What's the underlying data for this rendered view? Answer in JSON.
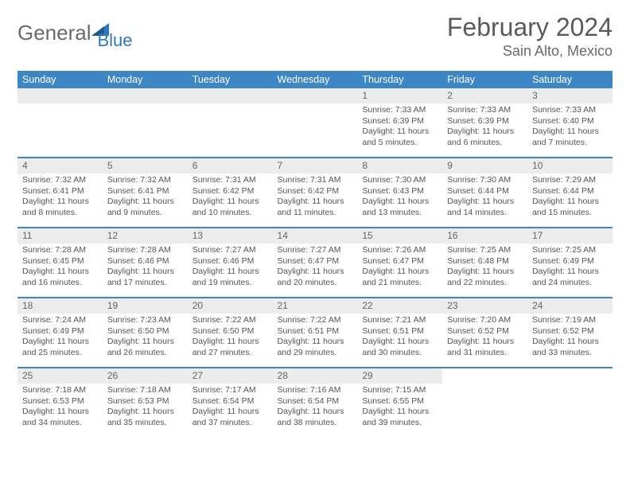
{
  "brand": {
    "general": "General",
    "blue": "Blue"
  },
  "title": "February 2024",
  "location": "Sain Alto, Mexico",
  "dayNames": [
    "Sunday",
    "Monday",
    "Tuesday",
    "Wednesday",
    "Thursday",
    "Friday",
    "Saturday"
  ],
  "colors": {
    "headerBlue": "#3d86c6",
    "ruleBlue": "#3d86c6",
    "dayBg": "#ececec",
    "textGray": "#555555"
  },
  "weeks": [
    [
      null,
      null,
      null,
      null,
      {
        "n": "1",
        "sr": "Sunrise: 7:33 AM",
        "ss": "Sunset: 6:39 PM",
        "dl": "Daylight: 11 hours and 5 minutes."
      },
      {
        "n": "2",
        "sr": "Sunrise: 7:33 AM",
        "ss": "Sunset: 6:39 PM",
        "dl": "Daylight: 11 hours and 6 minutes."
      },
      {
        "n": "3",
        "sr": "Sunrise: 7:33 AM",
        "ss": "Sunset: 6:40 PM",
        "dl": "Daylight: 11 hours and 7 minutes."
      }
    ],
    [
      {
        "n": "4",
        "sr": "Sunrise: 7:32 AM",
        "ss": "Sunset: 6:41 PM",
        "dl": "Daylight: 11 hours and 8 minutes."
      },
      {
        "n": "5",
        "sr": "Sunrise: 7:32 AM",
        "ss": "Sunset: 6:41 PM",
        "dl": "Daylight: 11 hours and 9 minutes."
      },
      {
        "n": "6",
        "sr": "Sunrise: 7:31 AM",
        "ss": "Sunset: 6:42 PM",
        "dl": "Daylight: 11 hours and 10 minutes."
      },
      {
        "n": "7",
        "sr": "Sunrise: 7:31 AM",
        "ss": "Sunset: 6:42 PM",
        "dl": "Daylight: 11 hours and 11 minutes."
      },
      {
        "n": "8",
        "sr": "Sunrise: 7:30 AM",
        "ss": "Sunset: 6:43 PM",
        "dl": "Daylight: 11 hours and 13 minutes."
      },
      {
        "n": "9",
        "sr": "Sunrise: 7:30 AM",
        "ss": "Sunset: 6:44 PM",
        "dl": "Daylight: 11 hours and 14 minutes."
      },
      {
        "n": "10",
        "sr": "Sunrise: 7:29 AM",
        "ss": "Sunset: 6:44 PM",
        "dl": "Daylight: 11 hours and 15 minutes."
      }
    ],
    [
      {
        "n": "11",
        "sr": "Sunrise: 7:28 AM",
        "ss": "Sunset: 6:45 PM",
        "dl": "Daylight: 11 hours and 16 minutes."
      },
      {
        "n": "12",
        "sr": "Sunrise: 7:28 AM",
        "ss": "Sunset: 6:46 PM",
        "dl": "Daylight: 11 hours and 17 minutes."
      },
      {
        "n": "13",
        "sr": "Sunrise: 7:27 AM",
        "ss": "Sunset: 6:46 PM",
        "dl": "Daylight: 11 hours and 19 minutes."
      },
      {
        "n": "14",
        "sr": "Sunrise: 7:27 AM",
        "ss": "Sunset: 6:47 PM",
        "dl": "Daylight: 11 hours and 20 minutes."
      },
      {
        "n": "15",
        "sr": "Sunrise: 7:26 AM",
        "ss": "Sunset: 6:47 PM",
        "dl": "Daylight: 11 hours and 21 minutes."
      },
      {
        "n": "16",
        "sr": "Sunrise: 7:25 AM",
        "ss": "Sunset: 6:48 PM",
        "dl": "Daylight: 11 hours and 22 minutes."
      },
      {
        "n": "17",
        "sr": "Sunrise: 7:25 AM",
        "ss": "Sunset: 6:49 PM",
        "dl": "Daylight: 11 hours and 24 minutes."
      }
    ],
    [
      {
        "n": "18",
        "sr": "Sunrise: 7:24 AM",
        "ss": "Sunset: 6:49 PM",
        "dl": "Daylight: 11 hours and 25 minutes."
      },
      {
        "n": "19",
        "sr": "Sunrise: 7:23 AM",
        "ss": "Sunset: 6:50 PM",
        "dl": "Daylight: 11 hours and 26 minutes."
      },
      {
        "n": "20",
        "sr": "Sunrise: 7:22 AM",
        "ss": "Sunset: 6:50 PM",
        "dl": "Daylight: 11 hours and 27 minutes."
      },
      {
        "n": "21",
        "sr": "Sunrise: 7:22 AM",
        "ss": "Sunset: 6:51 PM",
        "dl": "Daylight: 11 hours and 29 minutes."
      },
      {
        "n": "22",
        "sr": "Sunrise: 7:21 AM",
        "ss": "Sunset: 6:51 PM",
        "dl": "Daylight: 11 hours and 30 minutes."
      },
      {
        "n": "23",
        "sr": "Sunrise: 7:20 AM",
        "ss": "Sunset: 6:52 PM",
        "dl": "Daylight: 11 hours and 31 minutes."
      },
      {
        "n": "24",
        "sr": "Sunrise: 7:19 AM",
        "ss": "Sunset: 6:52 PM",
        "dl": "Daylight: 11 hours and 33 minutes."
      }
    ],
    [
      {
        "n": "25",
        "sr": "Sunrise: 7:18 AM",
        "ss": "Sunset: 6:53 PM",
        "dl": "Daylight: 11 hours and 34 minutes."
      },
      {
        "n": "26",
        "sr": "Sunrise: 7:18 AM",
        "ss": "Sunset: 6:53 PM",
        "dl": "Daylight: 11 hours and 35 minutes."
      },
      {
        "n": "27",
        "sr": "Sunrise: 7:17 AM",
        "ss": "Sunset: 6:54 PM",
        "dl": "Daylight: 11 hours and 37 minutes."
      },
      {
        "n": "28",
        "sr": "Sunrise: 7:16 AM",
        "ss": "Sunset: 6:54 PM",
        "dl": "Daylight: 11 hours and 38 minutes."
      },
      {
        "n": "29",
        "sr": "Sunrise: 7:15 AM",
        "ss": "Sunset: 6:55 PM",
        "dl": "Daylight: 11 hours and 39 minutes."
      },
      null,
      null
    ]
  ]
}
